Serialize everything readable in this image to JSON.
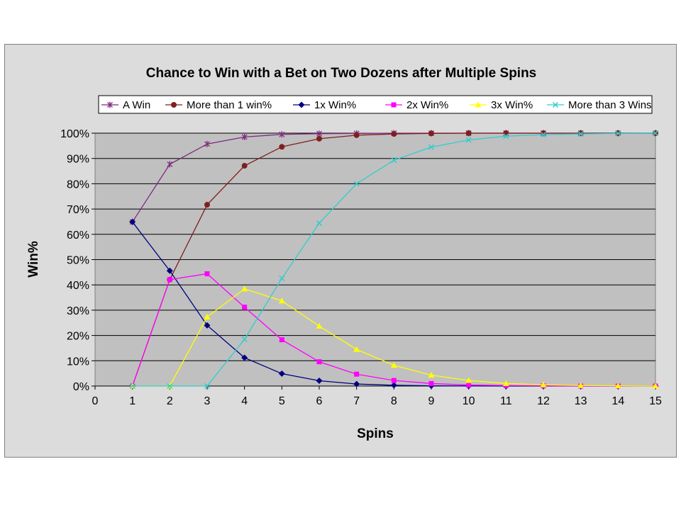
{
  "chart_data": {
    "type": "line",
    "title": "Chance to Win with a Bet on Two Dozens after Multiple Spins",
    "xlabel": "Spins",
    "ylabel": "Win%",
    "xlim": [
      0,
      15
    ],
    "ylim": [
      0,
      100
    ],
    "x_ticks": [
      "0",
      "1",
      "2",
      "3",
      "4",
      "5",
      "6",
      "7",
      "8",
      "9",
      "10",
      "11",
      "12",
      "13",
      "14",
      "15"
    ],
    "y_ticks": [
      "0%",
      "10%",
      "20%",
      "30%",
      "40%",
      "50%",
      "60%",
      "70%",
      "80%",
      "90%",
      "100%"
    ],
    "grid": true,
    "legend_position": "top",
    "plot_background": "#c0c0c0",
    "chart_background": "#dcdcdc",
    "x": [
      1,
      2,
      3,
      4,
      5,
      6,
      7,
      8,
      9,
      10,
      11,
      12,
      13,
      14,
      15
    ],
    "series": [
      {
        "name": "A Win",
        "color": "#7f2a7f",
        "marker": "star",
        "values": [
          64.9,
          87.7,
          95.7,
          98.5,
          99.5,
          99.8,
          99.9,
          100,
          100,
          100,
          100,
          100,
          100,
          100,
          100
        ]
      },
      {
        "name": "More than 1 win%",
        "color": "#7f1f1f",
        "marker": "circle",
        "values": [
          0,
          42.1,
          71.7,
          87.1,
          94.6,
          97.8,
          99.2,
          99.7,
          99.9,
          100,
          100,
          100,
          100,
          100,
          100
        ]
      },
      {
        "name": "1x Win%",
        "color": "#000080",
        "marker": "diamond",
        "values": [
          64.9,
          45.6,
          24.0,
          11.2,
          4.9,
          2.1,
          0.8,
          0.3,
          0.1,
          0.05,
          0,
          0,
          0,
          0,
          0
        ]
      },
      {
        "name": "2x Win%",
        "color": "#ff00ff",
        "marker": "square",
        "values": [
          0,
          42.1,
          44.4,
          31.2,
          18.3,
          9.6,
          4.7,
          2.2,
          1.0,
          0.4,
          0.2,
          0.1,
          0,
          0,
          0
        ]
      },
      {
        "name": "3x Win%",
        "color": "#ffff00",
        "marker": "triangle",
        "values": [
          0,
          0,
          27.3,
          38.4,
          33.7,
          23.7,
          14.5,
          8.2,
          4.3,
          2.2,
          1.0,
          0.5,
          0.2,
          0.1,
          0
        ]
      },
      {
        "name": "More than 3 Wins",
        "color": "#33cccc",
        "marker": "x",
        "values": [
          0,
          0,
          0,
          18.5,
          42.6,
          64.4,
          80.0,
          89.3,
          94.5,
          97.3,
          98.8,
          99.4,
          99.7,
          99.9,
          100
        ]
      }
    ]
  }
}
